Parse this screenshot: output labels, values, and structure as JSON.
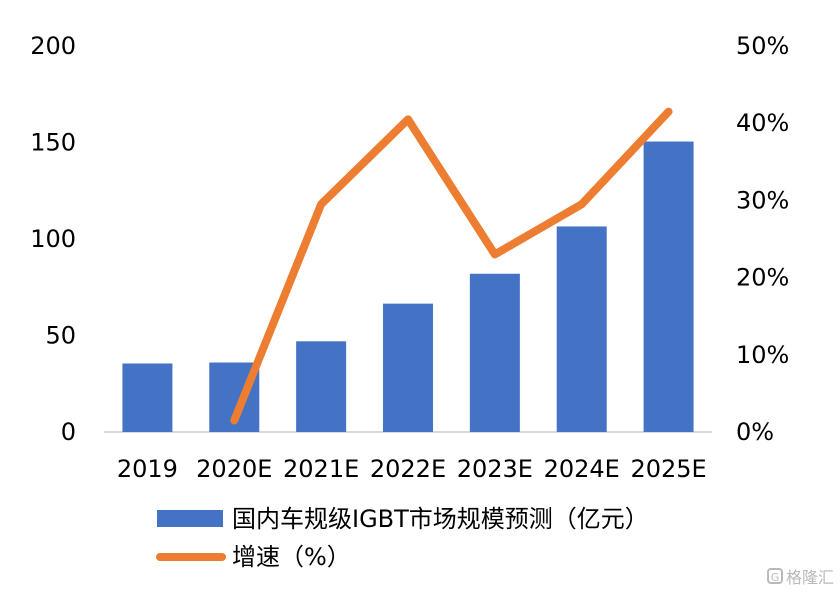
{
  "chart_data": {
    "type": "bar",
    "categories": [
      "2019",
      "2020E",
      "2021E",
      "2022E",
      "2023E",
      "2024E",
      "2025E"
    ],
    "series": [
      {
        "name": "国内车规级IGBT市场规模预测（亿元）",
        "type": "bar",
        "axis": "left",
        "values": [
          35.5,
          36,
          47,
          66.5,
          82,
          106.5,
          150.5
        ]
      },
      {
        "name": "增速（%）",
        "type": "line",
        "axis": "right",
        "values": [
          null,
          1.5,
          29.5,
          40.5,
          23,
          29.5,
          41.5
        ]
      }
    ],
    "left_axis": {
      "min": 0,
      "max": 200,
      "ticks": [
        "0",
        "50",
        "100",
        "150",
        "200"
      ]
    },
    "right_axis": {
      "min": 0,
      "max": 50,
      "ticks": [
        "0%",
        "10%",
        "20%",
        "30%",
        "40%",
        "50%"
      ]
    },
    "grid": false,
    "legend_position": "bottom",
    "colors": {
      "bar": "#4472C4",
      "line": "#ED7D31",
      "axis": "#d9d9d9"
    }
  },
  "watermark": {
    "icon": "G",
    "text": "格隆汇"
  }
}
